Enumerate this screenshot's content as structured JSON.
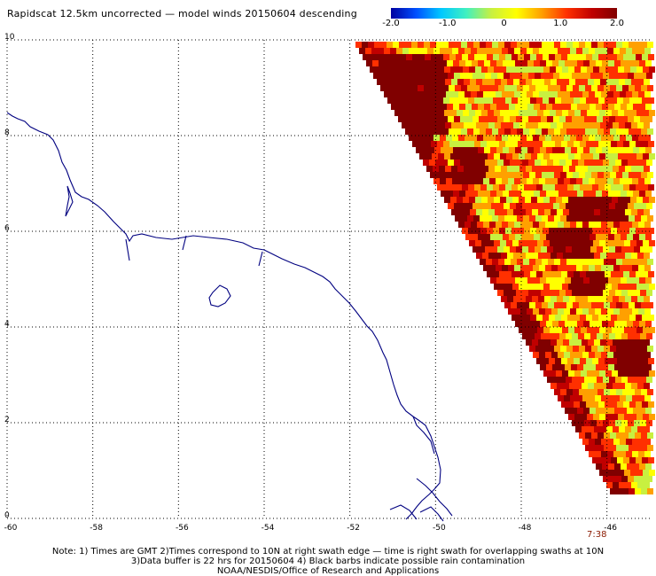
{
  "title": "Rapidscat 12.5km uncorrected — model winds 20150604 descending",
  "colorbar": {
    "ticks": [
      "-2.0",
      "-1.0",
      "0",
      "1.0",
      "2.0"
    ],
    "tick_values": [
      -2.0,
      -1.0,
      0,
      1.0,
      2.0
    ],
    "range": [
      -2.0,
      2.0
    ],
    "colors": [
      "#0000a0",
      "#0050ff",
      "#00c8ff",
      "#40f0c0",
      "#c8f040",
      "#ffff00",
      "#ffa000",
      "#ff3000",
      "#c00000",
      "#800000"
    ]
  },
  "map": {
    "lon_range": [
      -60,
      -45
    ],
    "lat_range": [
      0,
      10
    ],
    "x_ticks": [
      "-60",
      "-58",
      "-56",
      "-54",
      "-52",
      "-50",
      "-48",
      "-46"
    ],
    "x_tick_values": [
      -60,
      -58,
      -56,
      -54,
      -52,
      -50,
      -48,
      -46
    ],
    "y_ticks": [
      "0",
      "2",
      "4",
      "6",
      "8",
      "10"
    ],
    "y_tick_values": [
      0,
      2,
      4,
      6,
      8,
      10
    ],
    "grid": "dotted",
    "coastline_color": "#000080"
  },
  "time_label": "7:38",
  "notes": [
    "Note: 1) Times are GMT 2)Times correspond to 10N at right swath edge — time is right swath for overlapping swaths at 10N",
    "3)Data buffer is 22 hrs for 20150604 4) Black barbs indicate possible rain contamination",
    "NOAA/NESDIS/Office of Research and Applications"
  ]
}
